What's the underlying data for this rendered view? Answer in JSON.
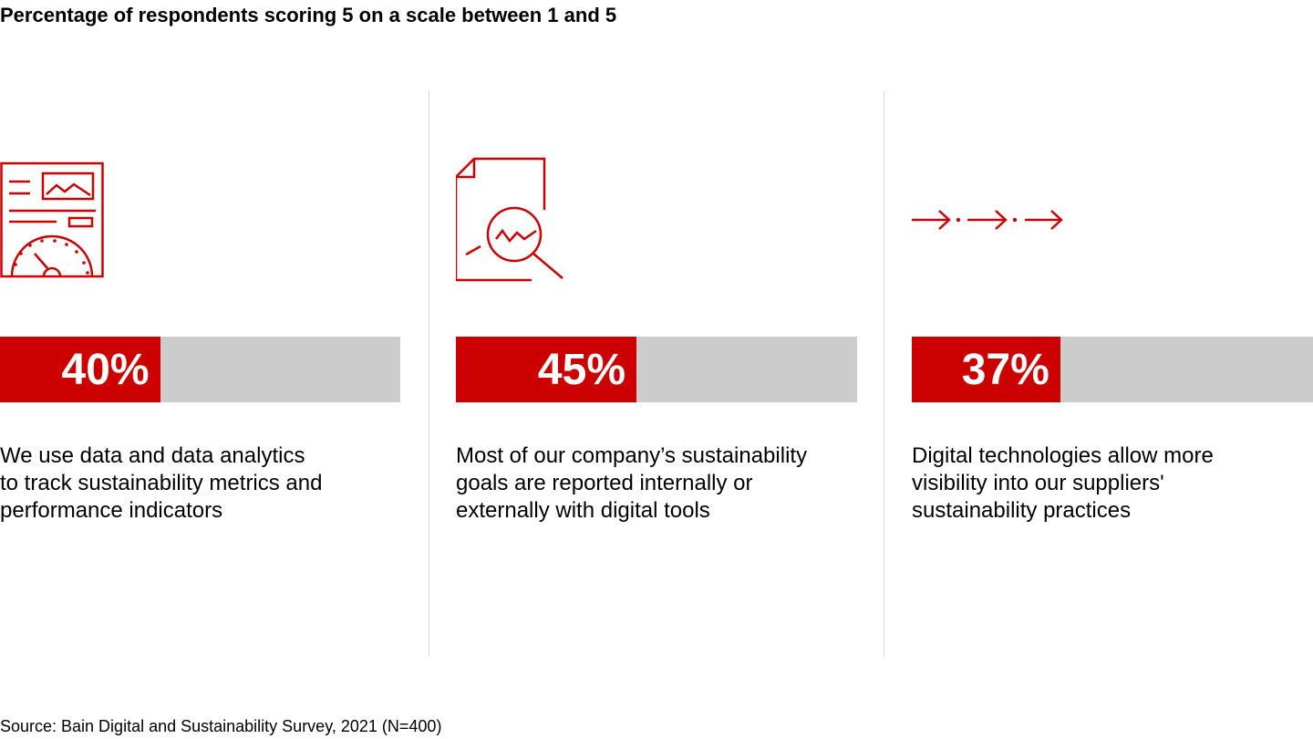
{
  "chart_data": {
    "type": "bar",
    "title": "Percentage of respondents scoring 5 on a scale between 1 and 5",
    "categories": [
      "We use data and data analytics to track sustainability metrics and performance indicators",
      "Most of our company’s sustainability goals are reported internally or externally with digital tools",
      "Digital technologies allow more visibility into our suppliers' sustainability practices"
    ],
    "values": [
      40,
      45,
      37
    ],
    "value_labels": [
      "40%",
      "45%",
      "37%"
    ],
    "ylim": [
      0,
      100
    ],
    "orientation": "horizontal",
    "source": "Source: Bain Digital and Sustainability Survey, 2021 (N=400)"
  },
  "panels": [
    {
      "icon": "dashboard-report-icon",
      "lines": [
        "We use data and data analytics",
        "to track sustainability metrics and",
        "performance indicators"
      ]
    },
    {
      "icon": "document-magnifier-icon",
      "lines": [
        "Most of our company’s sustainability",
        "goals are reported internally or",
        "externally with digital tools"
      ]
    },
    {
      "icon": "arrow-chain-icon",
      "lines": [
        "Digital technologies allow more",
        "visibility into our suppliers'",
        "sustainability practices"
      ]
    }
  ],
  "colors": {
    "accent": "#cc0000",
    "track": "#cccccc",
    "divider": "#d9d9d9"
  }
}
